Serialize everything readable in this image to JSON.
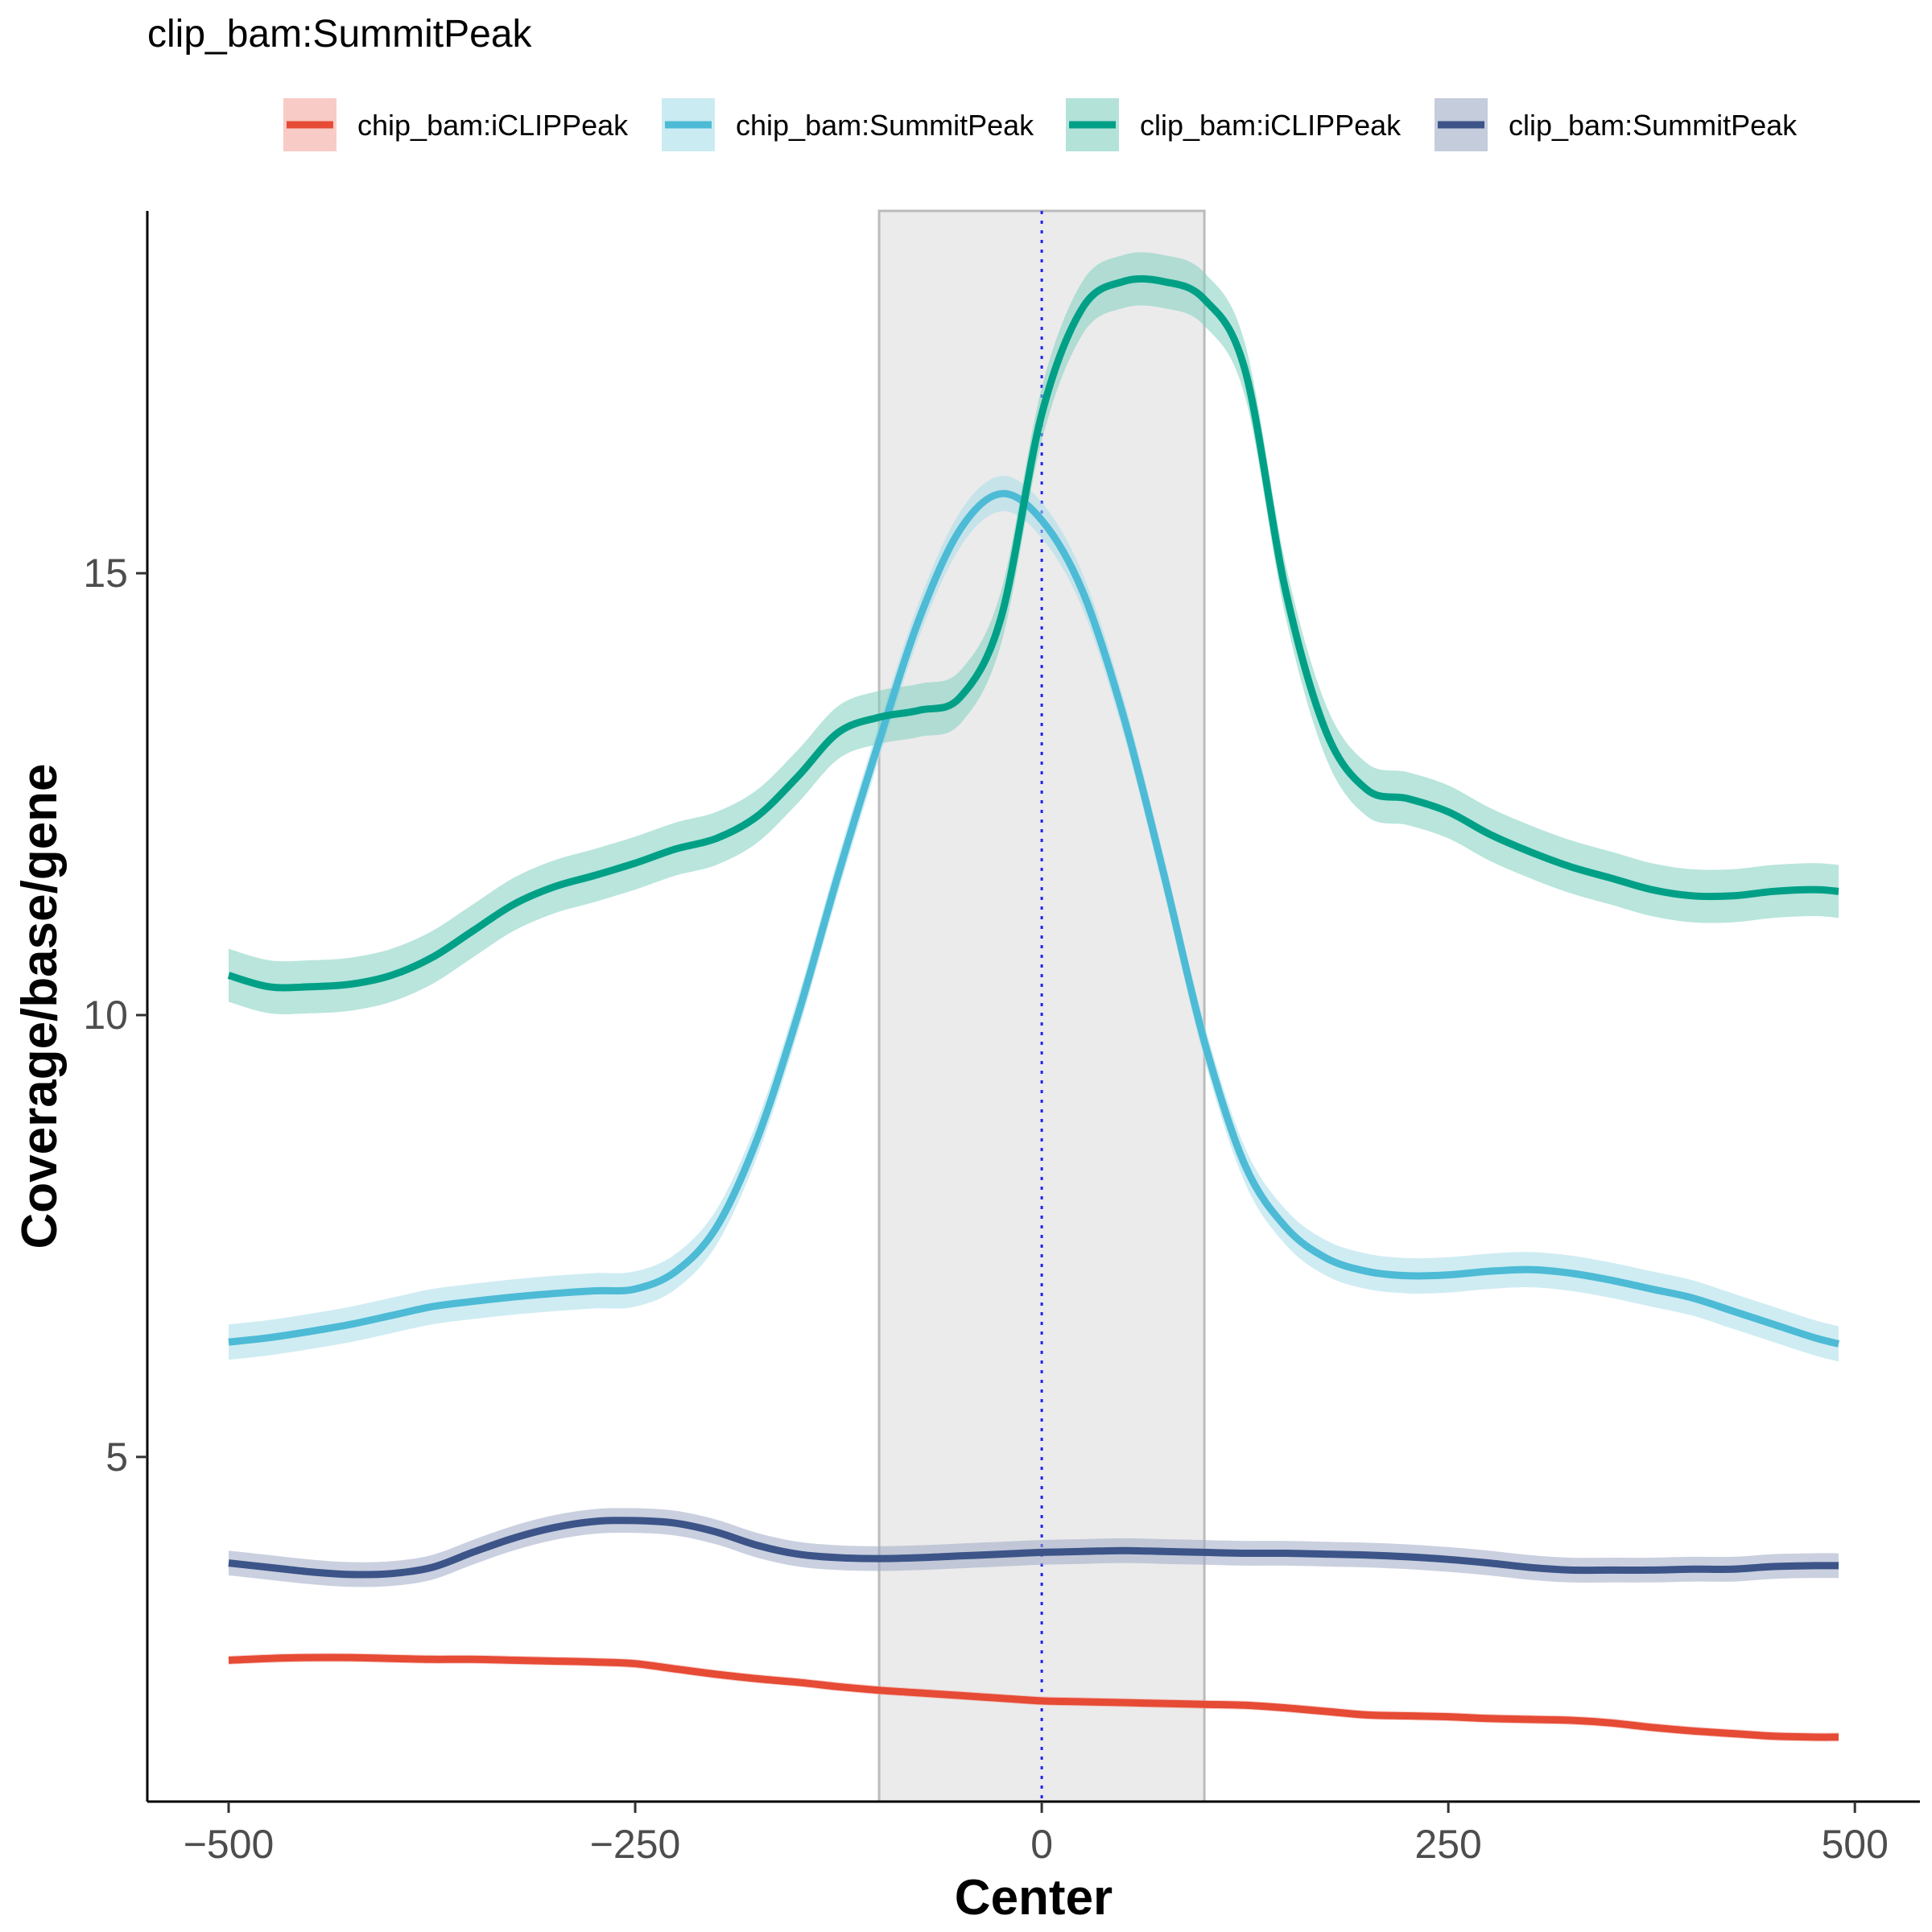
{
  "chart_data": {
    "type": "line",
    "title": "clip_bam:SummitPeak",
    "xlabel": "Center",
    "ylabel": "Coverage/base/gene",
    "xlim": [
      -550,
      540
    ],
    "ylim": [
      1.1,
      19.1
    ],
    "x_ticks": [
      -500,
      -250,
      0,
      250,
      500
    ],
    "x_tick_labels": [
      "−500",
      "−250",
      "0",
      "250",
      "500"
    ],
    "y_ticks": [
      5,
      10,
      15
    ],
    "y_tick_labels": [
      "5",
      "10",
      "15"
    ],
    "highlight_region": [
      -100,
      100
    ],
    "center_line": 0,
    "grid": false,
    "legend_position": "top",
    "x": [
      -500,
      -475,
      -450,
      -425,
      -400,
      -375,
      -350,
      -325,
      -300,
      -275,
      -250,
      -225,
      -200,
      -175,
      -150,
      -125,
      -100,
      -75,
      -50,
      -25,
      0,
      25,
      50,
      75,
      100,
      125,
      150,
      175,
      200,
      225,
      250,
      275,
      300,
      325,
      350,
      375,
      400,
      425,
      450,
      475,
      490
    ],
    "series": [
      {
        "name": "chip_bam:iCLIPPeak",
        "color": "#E64B35",
        "band_color": "#F4A8A0",
        "values": [
          2.7,
          2.72,
          2.73,
          2.73,
          2.72,
          2.71,
          2.71,
          2.7,
          2.69,
          2.68,
          2.66,
          2.6,
          2.54,
          2.49,
          2.45,
          2.4,
          2.36,
          2.33,
          2.3,
          2.27,
          2.24,
          2.23,
          2.22,
          2.21,
          2.2,
          2.19,
          2.16,
          2.12,
          2.08,
          2.07,
          2.06,
          2.04,
          2.03,
          2.02,
          1.99,
          1.94,
          1.9,
          1.87,
          1.84,
          1.83,
          1.83
        ],
        "band": 0.05
      },
      {
        "name": "chip_bam:SummitPeak",
        "color": "#4DBBD5",
        "band_color": "#A8DDEA",
        "values": [
          6.3,
          6.35,
          6.42,
          6.5,
          6.6,
          6.7,
          6.76,
          6.81,
          6.85,
          6.88,
          6.9,
          7.1,
          7.6,
          8.6,
          10.0,
          11.6,
          13.1,
          14.5,
          15.5,
          15.9,
          15.6,
          14.8,
          13.4,
          11.6,
          9.7,
          8.3,
          7.6,
          7.25,
          7.1,
          7.05,
          7.06,
          7.1,
          7.12,
          7.08,
          7.0,
          6.9,
          6.8,
          6.65,
          6.5,
          6.35,
          6.28
        ],
        "band": 0.2
      },
      {
        "name": "clip_bam:iCLIPPeak",
        "color": "#00A087",
        "band_color": "#80CFC0",
        "values": [
          10.45,
          10.32,
          10.32,
          10.35,
          10.45,
          10.65,
          10.95,
          11.25,
          11.45,
          11.58,
          11.72,
          11.88,
          12.0,
          12.25,
          12.7,
          13.2,
          13.37,
          13.45,
          13.6,
          14.5,
          16.8,
          18.0,
          18.3,
          18.3,
          18.1,
          17.3,
          14.8,
          13.2,
          12.55,
          12.45,
          12.3,
          12.05,
          11.85,
          11.68,
          11.55,
          11.42,
          11.35,
          11.35,
          11.4,
          11.42,
          11.4
        ],
        "band": 0.3
      },
      {
        "name": "clip_bam:SummitPeak",
        "color": "#3C5488",
        "band_color": "#9FAAC4",
        "values": [
          3.8,
          3.75,
          3.7,
          3.67,
          3.68,
          3.75,
          3.92,
          4.08,
          4.2,
          4.27,
          4.28,
          4.25,
          4.15,
          4.0,
          3.9,
          3.86,
          3.85,
          3.86,
          3.88,
          3.9,
          3.92,
          3.93,
          3.94,
          3.93,
          3.92,
          3.91,
          3.91,
          3.9,
          3.89,
          3.87,
          3.84,
          3.8,
          3.75,
          3.72,
          3.72,
          3.72,
          3.73,
          3.73,
          3.76,
          3.77,
          3.77
        ],
        "band": 0.14
      }
    ]
  }
}
